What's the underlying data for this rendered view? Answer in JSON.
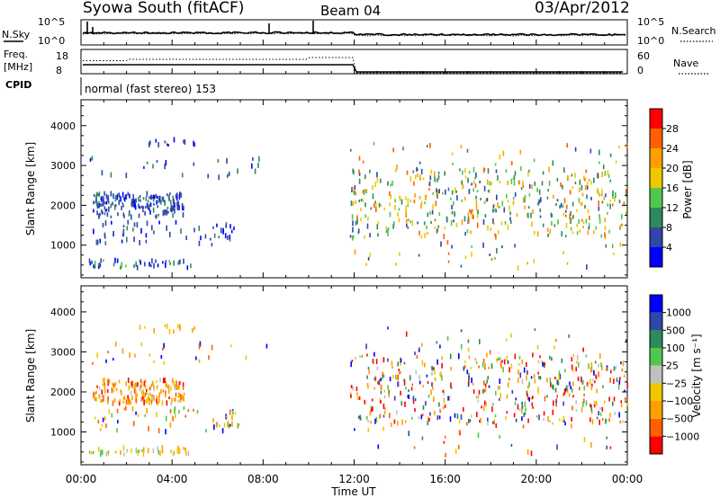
{
  "header": {
    "station": "Syowa South (fitACF)",
    "beam": "Beam 04",
    "date": "03/Apr/2012"
  },
  "mode_line": "normal (fast stereo) 153",
  "noise_panel": {
    "left_label": "N.Sky",
    "right_label": "N.Search",
    "left_ticks": [
      "10^5",
      "10^0"
    ],
    "right_ticks": [
      "10^5",
      "10^0"
    ]
  },
  "freq_panel": {
    "left_label_1": "Freq.",
    "left_label_2": "[MHz]",
    "left_label_3": "CPID",
    "right_label": "Nave",
    "left_ticks": [
      "18",
      "8"
    ],
    "right_ticks": [
      "60",
      "0"
    ]
  },
  "colors": {
    "power": [
      "#0000ff",
      "#3047a8",
      "#2e8a5a",
      "#50c850",
      "#f0c800",
      "#ffa000",
      "#ff6000",
      "#ff0000"
    ],
    "velocity": [
      "#ff0000",
      "#ff6000",
      "#ffa000",
      "#f0c800",
      "#c0c0c0",
      "#50c850",
      "#2e8a5a",
      "#3047a8",
      "#0000ff"
    ]
  },
  "chart_data": [
    {
      "type": "scatter",
      "title": "",
      "xlabel": "Time UT",
      "ylabel": "Slant Range [km]",
      "x_ticks": [
        "00:00",
        "04:00",
        "08:00",
        "12:00",
        "16:00",
        "20:00",
        "00:00"
      ],
      "xlim_hours": [
        0,
        24
      ],
      "y_ticks": [
        1000,
        2000,
        3000,
        4000
      ],
      "ylim": [
        180,
        4650
      ],
      "colorbar": {
        "label": "Power [dB]",
        "ticks": [
          4,
          8,
          12,
          16,
          20,
          24,
          28
        ],
        "range": [
          0,
          32
        ]
      },
      "regions": [
        {
          "t": [
            0.5,
            4.5
          ],
          "r": [
            1700,
            2300
          ],
          "density": 180,
          "colors": [
            0,
            1,
            1,
            1,
            2
          ]
        },
        {
          "t": [
            0.5,
            7.0
          ],
          "r": [
            1000,
            1600
          ],
          "density": 60,
          "colors": [
            0,
            1,
            1,
            2
          ]
        },
        {
          "t": [
            0.3,
            4.8
          ],
          "r": [
            430,
            620
          ],
          "density": 45,
          "colors": [
            0,
            1,
            1,
            2,
            3
          ]
        },
        {
          "t": [
            0.3,
            8.5
          ],
          "r": [
            2700,
            3200
          ],
          "density": 25,
          "colors": [
            0,
            1,
            1,
            2
          ]
        },
        {
          "t": [
            2.5,
            5.0
          ],
          "r": [
            3500,
            3650
          ],
          "density": 12,
          "colors": [
            0,
            1
          ]
        },
        {
          "t": [
            11.8,
            24.0
          ],
          "r": [
            1200,
            2900
          ],
          "density": 360,
          "colors": [
            1,
            2,
            2,
            3,
            3,
            4,
            4,
            5,
            6
          ]
        },
        {
          "t": [
            11.8,
            24.0
          ],
          "r": [
            400,
            3600
          ],
          "density": 140,
          "colors": [
            1,
            2,
            3,
            4,
            5,
            6
          ]
        }
      ]
    },
    {
      "type": "scatter",
      "title": "",
      "xlabel": "Time UT",
      "ylabel": "Slant Range [km]",
      "x_ticks": [
        "00:00",
        "04:00",
        "08:00",
        "12:00",
        "16:00",
        "20:00",
        "00:00"
      ],
      "xlim_hours": [
        0,
        24
      ],
      "y_ticks": [
        1000,
        2000,
        3000,
        4000
      ],
      "ylim": [
        180,
        4650
      ],
      "colorbar": {
        "label": "Velocity [m s⁻¹]",
        "ticks": [
          "1000",
          "500",
          "100",
          "25",
          "−25",
          "−100",
          "−500",
          "−1000"
        ]
      },
      "regions": [
        {
          "t": [
            0.5,
            4.5
          ],
          "r": [
            1700,
            2300
          ],
          "density": 180,
          "colors": [
            0,
            1,
            2,
            2,
            3,
            4
          ]
        },
        {
          "t": [
            0.5,
            7.0
          ],
          "r": [
            1000,
            1600
          ],
          "density": 60,
          "colors": [
            1,
            2,
            3,
            5,
            8
          ]
        },
        {
          "t": [
            0.3,
            4.8
          ],
          "r": [
            430,
            620
          ],
          "density": 45,
          "colors": [
            2,
            3,
            3,
            4,
            5
          ]
        },
        {
          "t": [
            0.3,
            8.5
          ],
          "r": [
            2700,
            3200
          ],
          "density": 25,
          "colors": [
            1,
            2,
            3,
            8
          ]
        },
        {
          "t": [
            2.5,
            5.0
          ],
          "r": [
            3500,
            3650
          ],
          "density": 12,
          "colors": [
            2,
            3
          ]
        },
        {
          "t": [
            11.8,
            24.0
          ],
          "r": [
            1200,
            2900
          ],
          "density": 360,
          "colors": [
            0,
            0,
            1,
            2,
            2,
            3,
            4,
            5,
            6,
            7,
            8
          ]
        },
        {
          "t": [
            11.8,
            24.0
          ],
          "r": [
            400,
            3600
          ],
          "density": 140,
          "colors": [
            0,
            1,
            2,
            3,
            5,
            6,
            7,
            8
          ]
        }
      ]
    }
  ]
}
